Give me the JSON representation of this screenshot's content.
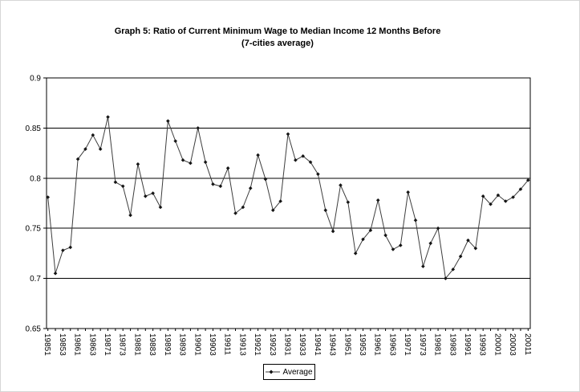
{
  "title": {
    "line1": "Graph 5: Ratio of Current Minimum Wage to Median Income 12 Months Before",
    "line2": "(7-cities average)"
  },
  "legend": {
    "label": "Average"
  },
  "colors": {
    "line": "#3d3d3d",
    "marker": "#141414",
    "axis": "#000000",
    "grid": "#000000",
    "text": "#000000"
  },
  "chart_data": {
    "type": "line",
    "title": "Graph 5: Ratio of Current Minimum Wage to Median Income 12 Months Before (7-cities average)",
    "xlabel": "",
    "ylabel": "",
    "ylim": [
      0.65,
      0.9
    ],
    "y_ticks": [
      0.9,
      0.85,
      0.8,
      0.75,
      0.7,
      0.65
    ],
    "y_tick_labels": [
      "0.9",
      "0.85",
      "0.8",
      "0.75",
      "0.7",
      "0.65"
    ],
    "grid": "horizontal",
    "legend_position": "bottom-center",
    "marker": "diamond",
    "x": [
      "19851",
      "19852",
      "19853",
      "19854",
      "19861",
      "19862",
      "19863",
      "19864",
      "19871",
      "19872",
      "19873",
      "19874",
      "19881",
      "19882",
      "19883",
      "19884",
      "19891",
      "19892",
      "19893",
      "19894",
      "19901",
      "19902",
      "19903",
      "19904",
      "19911",
      "19912",
      "19913",
      "19914",
      "19921",
      "19922",
      "19923",
      "19924",
      "19931",
      "19932",
      "19933",
      "19934",
      "19941",
      "19942",
      "19943",
      "19944",
      "19951",
      "19952",
      "19953",
      "19954",
      "19961",
      "19962",
      "19963",
      "19964",
      "19971",
      "19972",
      "19973",
      "19974",
      "19981",
      "19982",
      "19983",
      "19984",
      "19991",
      "19992",
      "19993",
      "19994",
      "20001",
      "20002",
      "20003",
      "20004",
      "20011"
    ],
    "x_tick_labels": [
      "19851",
      "19853",
      "19861",
      "19863",
      "19871",
      "19873",
      "19881",
      "19883",
      "19891",
      "19893",
      "19901",
      "19903",
      "19911",
      "19913",
      "19921",
      "19923",
      "19931",
      "19933",
      "19941",
      "19943",
      "19951",
      "19953",
      "19961",
      "19963",
      "19971",
      "19973",
      "19981",
      "19983",
      "19991",
      "19993",
      "20001",
      "20003",
      "20011"
    ],
    "series": [
      {
        "name": "Average",
        "values": [
          0.781,
          0.705,
          0.728,
          0.731,
          0.819,
          0.829,
          0.843,
          0.829,
          0.861,
          0.796,
          0.792,
          0.763,
          0.814,
          0.782,
          0.785,
          0.771,
          0.857,
          0.837,
          0.818,
          0.815,
          0.85,
          0.816,
          0.794,
          0.792,
          0.81,
          0.765,
          0.771,
          0.79,
          0.823,
          0.799,
          0.768,
          0.777,
          0.844,
          0.818,
          0.822,
          0.816,
          0.804,
          0.768,
          0.747,
          0.793,
          0.776,
          0.725,
          0.739,
          0.748,
          0.778,
          0.743,
          0.729,
          0.733,
          0.786,
          0.758,
          0.712,
          0.735,
          0.75,
          0.7,
          0.709,
          0.722,
          0.738,
          0.73,
          0.782,
          0.774,
          0.783,
          0.777,
          0.781,
          0.789,
          0.798
        ]
      }
    ]
  }
}
